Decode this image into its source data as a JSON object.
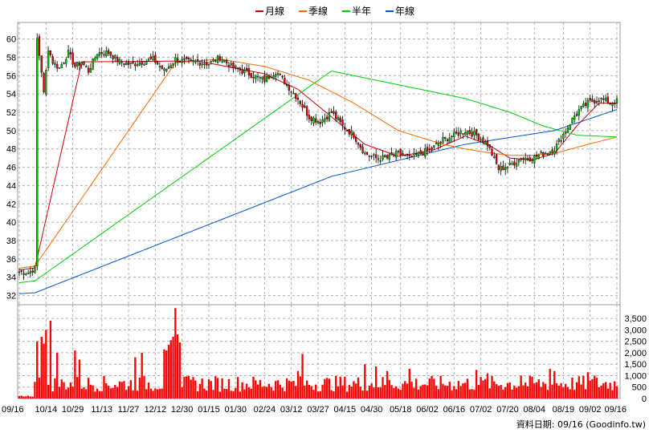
{
  "chart_data": {
    "type": "candlestick-volume",
    "legend": [
      {
        "name": "月線",
        "color": "#cc0000"
      },
      {
        "name": "季線",
        "color": "#ff6600"
      },
      {
        "name": "半年",
        "color": "#00cc00"
      },
      {
        "name": "年線",
        "color": "#0055cc"
      }
    ],
    "price_axis": {
      "ticks": [
        32,
        34,
        36,
        38,
        40,
        42,
        44,
        46,
        48,
        50,
        52,
        54,
        56,
        58,
        60
      ],
      "ylim": [
        31,
        61.8
      ]
    },
    "volume_axis": {
      "ticks": [
        0,
        500,
        1000,
        1500,
        2000,
        2500,
        3000,
        3500
      ],
      "tick_labels": [
        "0",
        "500",
        "1,000",
        "1,500",
        "2,000",
        "2,500",
        "3,000",
        "3,500"
      ],
      "ylim": [
        0,
        4100
      ]
    },
    "x_ticks": [
      "09/16",
      "10/14",
      "10/29",
      "11/13",
      "11/27",
      "12/12",
      "12/30",
      "01/15",
      "01/30",
      "02/24",
      "03/12",
      "03/27",
      "04/15",
      "04/30",
      "05/18",
      "06/02",
      "06/16",
      "07/02",
      "07/20",
      "08/04",
      "08/19",
      "09/02",
      "09/16"
    ],
    "price_anchors": [
      [
        0,
        34.6
      ],
      [
        4,
        34.5
      ],
      [
        7,
        35.0
      ],
      [
        8,
        60.0
      ],
      [
        10,
        56.5
      ],
      [
        11,
        54.0
      ],
      [
        13,
        59.0
      ],
      [
        15,
        57.5
      ],
      [
        18,
        56.8
      ],
      [
        22,
        58.5
      ],
      [
        25,
        57.0
      ],
      [
        28,
        57.5
      ],
      [
        31,
        56.5
      ],
      [
        35,
        58.5
      ],
      [
        40,
        58.5
      ],
      [
        45,
        57.5
      ],
      [
        50,
        57.2
      ],
      [
        55,
        57.5
      ],
      [
        60,
        57.8
      ],
      [
        65,
        56.5
      ],
      [
        70,
        57.8
      ],
      [
        75,
        57.5
      ],
      [
        80,
        57.5
      ],
      [
        85,
        57.3
      ],
      [
        90,
        58.0
      ],
      [
        95,
        57.0
      ],
      [
        100,
        56.5
      ],
      [
        105,
        56.0
      ],
      [
        110,
        55.5
      ],
      [
        115,
        56.5
      ],
      [
        120,
        55.0
      ],
      [
        125,
        53.5
      ],
      [
        130,
        51.5
      ],
      [
        135,
        51.0
      ],
      [
        140,
        52.0
      ],
      [
        145,
        50.5
      ],
      [
        150,
        49.5
      ],
      [
        155,
        47.5
      ],
      [
        160,
        47.0
      ],
      [
        165,
        47.0
      ],
      [
        170,
        47.5
      ],
      [
        175,
        47.0
      ],
      [
        180,
        47.5
      ],
      [
        185,
        48.0
      ],
      [
        190,
        49.0
      ],
      [
        195,
        49.5
      ],
      [
        200,
        50.0
      ],
      [
        205,
        49.5
      ],
      [
        210,
        48.5
      ],
      [
        215,
        45.8
      ],
      [
        220,
        46.2
      ],
      [
        225,
        47.0
      ],
      [
        230,
        47.0
      ],
      [
        235,
        47.5
      ],
      [
        240,
        48.0
      ],
      [
        245,
        50.0
      ],
      [
        250,
        52.0
      ],
      [
        255,
        53.0
      ],
      [
        260,
        53.5
      ],
      [
        265,
        53.0
      ],
      [
        268,
        53.2
      ]
    ],
    "ma_month": [
      [
        0,
        34.8
      ],
      [
        7,
        35.0
      ],
      [
        28,
        57.5
      ],
      [
        80,
        57.6
      ],
      [
        110,
        56.2
      ],
      [
        125,
        54.5
      ],
      [
        140,
        51.5
      ],
      [
        155,
        48.5
      ],
      [
        170,
        47.2
      ],
      [
        185,
        47.8
      ],
      [
        200,
        49.4
      ],
      [
        210,
        48.5
      ],
      [
        220,
        47.0
      ],
      [
        230,
        46.8
      ],
      [
        240,
        47.5
      ],
      [
        250,
        50.5
      ],
      [
        260,
        53.0
      ],
      [
        268,
        53.0
      ]
    ],
    "ma_quarter": [
      [
        0,
        35.0
      ],
      [
        7,
        35.2
      ],
      [
        70,
        57.4
      ],
      [
        90,
        57.8
      ],
      [
        110,
        57.0
      ],
      [
        130,
        55.5
      ],
      [
        150,
        53.0
      ],
      [
        170,
        50.0
      ],
      [
        190,
        48.5
      ],
      [
        200,
        48.0
      ],
      [
        210,
        47.6
      ],
      [
        220,
        47.3
      ],
      [
        230,
        47.3
      ],
      [
        240,
        47.5
      ],
      [
        255,
        48.5
      ],
      [
        268,
        49.3
      ]
    ],
    "ma_half": [
      [
        0,
        33.4
      ],
      [
        7,
        33.6
      ],
      [
        140,
        56.5
      ],
      [
        160,
        55.5
      ],
      [
        180,
        54.5
      ],
      [
        200,
        53.5
      ],
      [
        220,
        52.0
      ],
      [
        235,
        50.5
      ],
      [
        250,
        49.5
      ],
      [
        268,
        49.3
      ]
    ],
    "ma_year": [
      [
        0,
        32.2
      ],
      [
        7,
        32.3
      ],
      [
        140,
        45.0
      ],
      [
        200,
        48.5
      ],
      [
        240,
        50.0
      ],
      [
        268,
        52.3
      ]
    ],
    "n_days": 269,
    "volume_spikes": [
      [
        8,
        2500
      ],
      [
        10,
        2700
      ],
      [
        11,
        2400
      ],
      [
        12,
        3000
      ],
      [
        14,
        3400
      ],
      [
        17,
        2000
      ],
      [
        25,
        2100
      ],
      [
        27,
        1700
      ],
      [
        52,
        1800
      ],
      [
        55,
        2000
      ],
      [
        65,
        2150
      ],
      [
        66,
        2100
      ],
      [
        67,
        2350
      ],
      [
        68,
        2550
      ],
      [
        69,
        2700
      ],
      [
        70,
        3950
      ],
      [
        71,
        2800
      ],
      [
        72,
        2450
      ],
      [
        125,
        1200
      ],
      [
        127,
        1950
      ],
      [
        155,
        1500
      ],
      [
        160,
        1400
      ],
      [
        165,
        1200
      ],
      [
        175,
        1300
      ],
      [
        205,
        1250
      ],
      [
        210,
        1100
      ],
      [
        225,
        1000
      ],
      [
        238,
        1300
      ],
      [
        240,
        1200
      ],
      [
        255,
        1150
      ],
      [
        258,
        1000
      ]
    ]
  },
  "footer": {
    "label": "資料日期: 09/16  (Goodinfo.tw)"
  }
}
